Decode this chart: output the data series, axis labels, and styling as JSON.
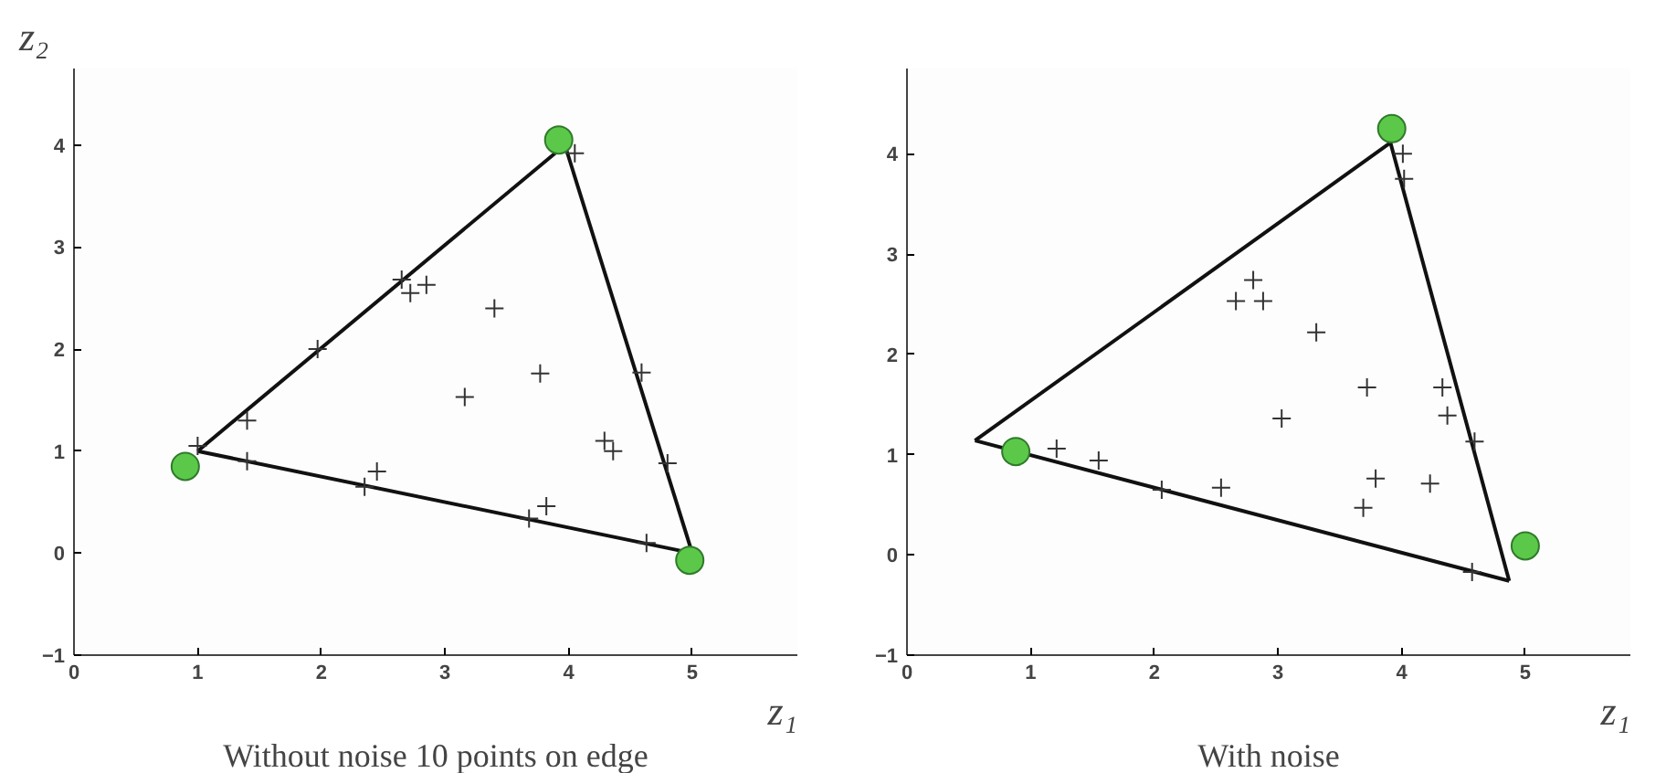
{
  "chart_data": [
    {
      "type": "scatter",
      "ylabel": "z₂",
      "xlabel": "z₁",
      "annotations": [
        "Without noise 10 points on edge"
      ],
      "xlim": [
        0,
        5.85
      ],
      "ylim": [
        -1,
        4.75
      ],
      "xticks": [
        0,
        1,
        2,
        3,
        4,
        5
      ],
      "yticks": [
        -1,
        0,
        1,
        2,
        3,
        4
      ],
      "grid": false,
      "series": [
        {
          "type": "line",
          "color": "#111111",
          "line_style": "solid",
          "marker": "none",
          "x": [
            1.0,
            3.97
          ],
          "values": [
            1.0,
            4.0
          ]
        },
        {
          "type": "line",
          "color": "#111111",
          "line_style": "solid",
          "marker": "none",
          "x": [
            3.97,
            5.0
          ],
          "values": [
            4.0,
            0.0
          ]
        },
        {
          "type": "line",
          "color": "#111111",
          "line_style": "solid",
          "marker": "none",
          "x": [
            1.0,
            5.0
          ],
          "values": [
            1.0,
            0.0
          ]
        },
        {
          "type": "scatter",
          "color": "#333333",
          "marker": "cross",
          "x": [
            1.0,
            1.4,
            1.4,
            1.97,
            2.35,
            2.45,
            2.65,
            2.72,
            2.85,
            3.4,
            3.16,
            3.77,
            3.68,
            3.82,
            4.05,
            4.29,
            4.36,
            4.59,
            4.8,
            4.63
          ],
          "values": [
            1.05,
            1.3,
            0.9,
            2.0,
            0.65,
            0.8,
            2.68,
            2.55,
            2.63,
            2.4,
            1.53,
            1.76,
            0.34,
            0.46,
            3.92,
            1.1,
            1.0,
            1.77,
            0.88,
            0.1
          ]
        },
        {
          "type": "scatter",
          "color": "#5cc84a",
          "marker": "circle",
          "x": [
            0.9,
            3.92,
            4.98
          ],
          "values": [
            0.85,
            4.05,
            -0.07
          ]
        }
      ]
    },
    {
      "type": "scatter",
      "xlabel": "z₁",
      "annotations": [
        "With noise"
      ],
      "xlim": [
        0,
        5.85
      ],
      "ylim": [
        -1,
        4.85
      ],
      "xticks": [
        0,
        1,
        2,
        3,
        4,
        5
      ],
      "yticks": [
        -1,
        0,
        1,
        2,
        3,
        4
      ],
      "grid": false,
      "series": [
        {
          "type": "line",
          "color": "#111111",
          "line_style": "solid",
          "marker": "none",
          "x": [
            0.55,
            3.91
          ],
          "values": [
            1.14,
            4.11
          ]
        },
        {
          "type": "line",
          "color": "#111111",
          "line_style": "solid",
          "marker": "none",
          "x": [
            3.91,
            4.87
          ],
          "values": [
            4.11,
            -0.26
          ]
        },
        {
          "type": "line",
          "color": "#111111",
          "line_style": "solid",
          "marker": "none",
          "x": [
            0.55,
            4.87
          ],
          "values": [
            1.14,
            -0.26
          ]
        },
        {
          "type": "scatter",
          "color": "#333333",
          "marker": "cross",
          "x": [
            1.21,
            1.55,
            2.06,
            2.54,
            2.66,
            2.8,
            2.88,
            3.31,
            3.03,
            3.72,
            3.79,
            3.69,
            4.33,
            4.37,
            4.23,
            4.59,
            4.57,
            4.02,
            4.01
          ],
          "values": [
            1.06,
            0.94,
            0.65,
            0.67,
            2.53,
            2.74,
            2.53,
            2.22,
            1.36,
            1.67,
            0.76,
            0.47,
            1.67,
            1.39,
            0.71,
            1.13,
            -0.17,
            3.75,
            4.0
          ]
        },
        {
          "type": "scatter",
          "color": "#5cc84a",
          "marker": "circle",
          "x": [
            0.88,
            3.92,
            5.0
          ],
          "values": [
            1.03,
            4.25,
            0.09
          ]
        }
      ]
    }
  ]
}
